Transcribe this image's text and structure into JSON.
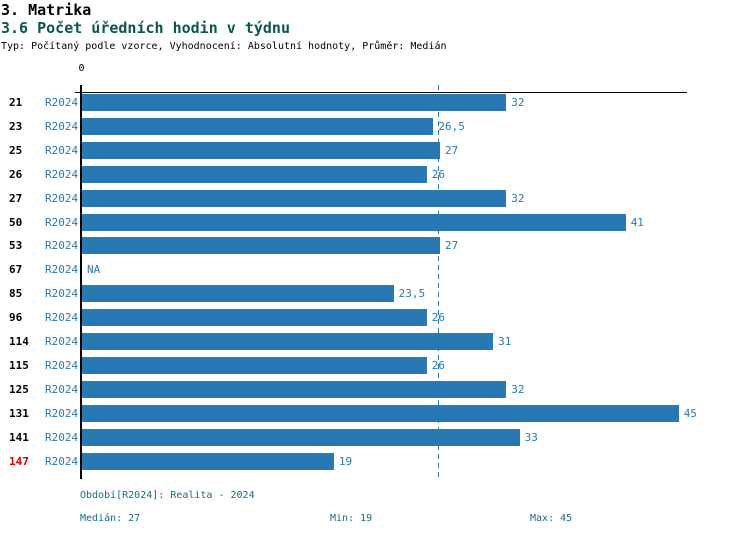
{
  "title": "3. Matrika",
  "subtitle": "3.6 Počet úředních hodin v týdnu",
  "meta_line": "Typ: Počítaný podle vzorce, Vyhodnocení: Absolutní hodnoty, Průměr: Medián",
  "chart_data": {
    "type": "bar",
    "orientation": "horizontal",
    "title": "3.6 Počet úředních hodin v týdnu",
    "xlabel": "",
    "ylabel": "",
    "xlim": [
      0,
      45.7
    ],
    "grid": false,
    "axis": {
      "zero_label": "0",
      "median_line_value": 27,
      "median_line_style": "dashed"
    },
    "categories": [
      "21",
      "23",
      "25",
      "26",
      "27",
      "50",
      "53",
      "67",
      "85",
      "96",
      "114",
      "115",
      "125",
      "131",
      "141",
      "147"
    ],
    "series_label": "R2024",
    "values": [
      32,
      26.5,
      27,
      26,
      32,
      41,
      27,
      null,
      23.5,
      26,
      31,
      26,
      32,
      45,
      33,
      19
    ],
    "rows": [
      {
        "id": "21",
        "period": "R2024",
        "value": 32,
        "value_label": "32",
        "highlight": false
      },
      {
        "id": "23",
        "period": "R2024",
        "value": 26.5,
        "value_label": "26,5",
        "highlight": false
      },
      {
        "id": "25",
        "period": "R2024",
        "value": 27,
        "value_label": "27",
        "highlight": false
      },
      {
        "id": "26",
        "period": "R2024",
        "value": 26,
        "value_label": "26",
        "highlight": false
      },
      {
        "id": "27",
        "period": "R2024",
        "value": 32,
        "value_label": "32",
        "highlight": false
      },
      {
        "id": "50",
        "period": "R2024",
        "value": 41,
        "value_label": "41",
        "highlight": false
      },
      {
        "id": "53",
        "period": "R2024",
        "value": 27,
        "value_label": "27",
        "highlight": false
      },
      {
        "id": "67",
        "period": "R2024",
        "value": null,
        "value_label": "NA",
        "highlight": false
      },
      {
        "id": "85",
        "period": "R2024",
        "value": 23.5,
        "value_label": "23,5",
        "highlight": false
      },
      {
        "id": "96",
        "period": "R2024",
        "value": 26,
        "value_label": "26",
        "highlight": false
      },
      {
        "id": "114",
        "period": "R2024",
        "value": 31,
        "value_label": "31",
        "highlight": false
      },
      {
        "id": "115",
        "period": "R2024",
        "value": 26,
        "value_label": "26",
        "highlight": false
      },
      {
        "id": "125",
        "period": "R2024",
        "value": 32,
        "value_label": "32",
        "highlight": false
      },
      {
        "id": "131",
        "period": "R2024",
        "value": 45,
        "value_label": "45",
        "highlight": false
      },
      {
        "id": "141",
        "period": "R2024",
        "value": 33,
        "value_label": "33",
        "highlight": true
      }
    ],
    "last_row": {
      "id": "147",
      "period": "R2024",
      "value": 19,
      "value_label": "19",
      "highlight": true
    }
  },
  "footer": {
    "period_line": "Období[R2024]: Realita - 2024",
    "median_label": "Medián: 27",
    "min_label": "Min: 19",
    "max_label": "Max: 45"
  },
  "colors": {
    "bar": "#2878b4",
    "value_label": "#2878b4",
    "subtitle": "#0d564d",
    "footer": "#1a6a85",
    "highlight_row": "#d40000",
    "axis": "#000000"
  }
}
